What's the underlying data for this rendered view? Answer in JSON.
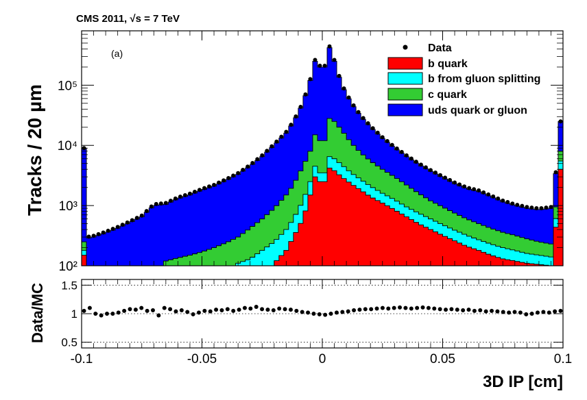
{
  "header": {
    "title": "CMS 2011, √s = 7 TeV"
  },
  "chart_data": {
    "type": "area",
    "subtitle": "(a)",
    "xlabel": "3D IP [cm]",
    "ylabel": "Tracks / 20 µm",
    "xlim": [
      -0.1,
      0.1
    ],
    "ylim": [
      100,
      800000
    ],
    "yscale": "log",
    "x_ticks": [
      "-0.1",
      "-0.05",
      "0",
      "0.05",
      "0.1"
    ],
    "x_tick_values": [
      -0.1,
      -0.05,
      0,
      0.05,
      0.1
    ],
    "y_ticks": [
      "10²",
      "10³",
      "10⁴",
      "10⁵"
    ],
    "y_tick_values": [
      100,
      1000,
      10000,
      100000
    ],
    "legend": {
      "placement": "top-right"
    },
    "series": [
      {
        "name": "Data",
        "kind": "points",
        "color": "#000000"
      },
      {
        "name": "b quark",
        "kind": "stack",
        "color": "#ff0000"
      },
      {
        "name": "b from gluon splitting",
        "kind": "stack",
        "color": "#00ffff"
      },
      {
        "name": "c quark",
        "kind": "stack",
        "color": "#33cc33"
      },
      {
        "name": "uds quark or gluon",
        "kind": "stack",
        "color": "#0000ff"
      }
    ],
    "stack_points": [
      {
        "x": -0.1,
        "b": 150,
        "bg": 180,
        "c": 250,
        "total": 9000
      },
      {
        "x": -0.099,
        "b": 1,
        "bg": 1,
        "c": 1,
        "total": 280
      },
      {
        "x": -0.095,
        "b": 1,
        "bg": 1,
        "c": 1,
        "total": 300
      },
      {
        "x": -0.09,
        "b": 1,
        "bg": 1,
        "c": 1,
        "total": 350
      },
      {
        "x": -0.085,
        "b": 1,
        "bg": 1,
        "c": 1,
        "total": 420
      },
      {
        "x": -0.08,
        "b": 1,
        "bg": 1,
        "c": 1,
        "total": 520
      },
      {
        "x": -0.075,
        "b": 1,
        "bg": 1,
        "c": 1,
        "total": 650
      },
      {
        "x": -0.07,
        "b": 1,
        "bg": 1,
        "c": 1,
        "total": 1000
      },
      {
        "x": -0.065,
        "b": 1,
        "bg": 1,
        "c": 120,
        "total": 1050
      },
      {
        "x": -0.06,
        "b": 1,
        "bg": 1,
        "c": 135,
        "total": 1300
      },
      {
        "x": -0.055,
        "b": 1,
        "bg": 1,
        "c": 150,
        "total": 1500
      },
      {
        "x": -0.05,
        "b": 1,
        "bg": 1,
        "c": 170,
        "total": 1800
      },
      {
        "x": -0.045,
        "b": 1,
        "bg": 1,
        "c": 200,
        "total": 2100
      },
      {
        "x": -0.04,
        "b": 1,
        "bg": 1,
        "c": 240,
        "total": 2600
      },
      {
        "x": -0.035,
        "b": 1,
        "bg": 110,
        "c": 300,
        "total": 3300
      },
      {
        "x": -0.03,
        "b": 1,
        "bg": 130,
        "c": 420,
        "total": 4500
      },
      {
        "x": -0.025,
        "b": 1,
        "bg": 180,
        "c": 600,
        "total": 6500
      },
      {
        "x": -0.02,
        "b": 110,
        "bg": 250,
        "c": 900,
        "total": 10000
      },
      {
        "x": -0.015,
        "b": 180,
        "bg": 400,
        "c": 1500,
        "total": 16000
      },
      {
        "x": -0.012,
        "b": 300,
        "bg": 600,
        "c": 2200,
        "total": 24000
      },
      {
        "x": -0.008,
        "b": 600,
        "bg": 1200,
        "c": 4500,
        "total": 50000
      },
      {
        "x": -0.005,
        "b": 1500,
        "bg": 2500,
        "c": 8000,
        "total": 120000
      },
      {
        "x": -0.003,
        "b": 3000,
        "bg": 4500,
        "c": 15000,
        "total": 250000
      },
      {
        "x": -0.002,
        "b": 3500,
        "bg": 5500,
        "c": 20000,
        "total": 400000
      },
      {
        "x": -0.001,
        "b": 2500,
        "bg": 3500,
        "c": 12000,
        "total": 200000
      },
      {
        "x": 0,
        "b": 1500,
        "bg": 2000,
        "c": 8000,
        "total": 200000
      },
      {
        "x": 0.001,
        "b": 2500,
        "bg": 3500,
        "c": 12000,
        "total": 200000
      },
      {
        "x": 0.002,
        "b": 3500,
        "bg": 5000,
        "c": 20000,
        "total": 350000
      },
      {
        "x": 0.003,
        "b": 4200,
        "bg": 6500,
        "c": 28000,
        "total": 420000
      },
      {
        "x": 0.005,
        "b": 3800,
        "bg": 6000,
        "c": 25000,
        "total": 250000
      },
      {
        "x": 0.008,
        "b": 3000,
        "bg": 4800,
        "c": 18000,
        "total": 100000
      },
      {
        "x": 0.012,
        "b": 2300,
        "bg": 3500,
        "c": 11000,
        "total": 50000
      },
      {
        "x": 0.016,
        "b": 1800,
        "bg": 2700,
        "c": 7500,
        "total": 30000
      },
      {
        "x": 0.02,
        "b": 1400,
        "bg": 2100,
        "c": 5500,
        "total": 20000
      },
      {
        "x": 0.025,
        "b": 1100,
        "bg": 1600,
        "c": 4000,
        "total": 13000
      },
      {
        "x": 0.03,
        "b": 850,
        "bg": 1250,
        "c": 3000,
        "total": 9000
      },
      {
        "x": 0.035,
        "b": 650,
        "bg": 950,
        "c": 2200,
        "total": 6500
      },
      {
        "x": 0.04,
        "b": 500,
        "bg": 750,
        "c": 1600,
        "total": 4800
      },
      {
        "x": 0.045,
        "b": 400,
        "bg": 600,
        "c": 1200,
        "total": 3700
      },
      {
        "x": 0.05,
        "b": 320,
        "bg": 480,
        "c": 950,
        "total": 2900
      },
      {
        "x": 0.055,
        "b": 260,
        "bg": 390,
        "c": 750,
        "total": 2300
      },
      {
        "x": 0.06,
        "b": 210,
        "bg": 320,
        "c": 600,
        "total": 1900
      },
      {
        "x": 0.065,
        "b": 180,
        "bg": 270,
        "c": 500,
        "total": 1700
      },
      {
        "x": 0.07,
        "b": 150,
        "bg": 230,
        "c": 420,
        "total": 1400
      },
      {
        "x": 0.075,
        "b": 130,
        "bg": 200,
        "c": 360,
        "total": 1150
      },
      {
        "x": 0.08,
        "b": 120,
        "bg": 180,
        "c": 320,
        "total": 1000
      },
      {
        "x": 0.085,
        "b": 110,
        "bg": 160,
        "c": 280,
        "total": 900
      },
      {
        "x": 0.09,
        "b": 105,
        "bg": 150,
        "c": 250,
        "total": 850
      },
      {
        "x": 0.095,
        "b": 100,
        "bg": 140,
        "c": 230,
        "total": 900
      },
      {
        "x": 0.1,
        "b": 4000,
        "bg": 5500,
        "c": 8000,
        "total": 25000
      }
    ],
    "ratio": {
      "ylabel": "Data/MC",
      "ylim": [
        0.4,
        1.6
      ],
      "y_ticks": [
        "0.5",
        "1",
        "1.5"
      ],
      "y_tick_values": [
        0.5,
        1,
        1.5
      ],
      "values": [
        1.05,
        1.1,
        1.0,
        0.97,
        1.0,
        1.0,
        1.02,
        1.05,
        1.08,
        1.07,
        1.1,
        1.05,
        1.06,
        0.97,
        1.1,
        1.08,
        1.04,
        1.06,
        1.03,
        0.99,
        1.02,
        1.05,
        1.04,
        1.07,
        1.06,
        1.08,
        1.05,
        1.07,
        1.1,
        1.09,
        1.12,
        1.08,
        1.07,
        1.06,
        1.09,
        1.08,
        1.07,
        1.05,
        1.03,
        1.02,
        1.0,
        0.99,
        0.98,
        1.0,
        1.02,
        1.03,
        1.04,
        1.06,
        1.07,
        1.08,
        1.08,
        1.09,
        1.1,
        1.09,
        1.1,
        1.11,
        1.1,
        1.09,
        1.1,
        1.11,
        1.1,
        1.09,
        1.08,
        1.07,
        1.08,
        1.07,
        1.06,
        1.07,
        1.05,
        1.06,
        1.04,
        1.05,
        1.04,
        1.03,
        1.02,
        1.03,
        1.02,
        0.99,
        1.0,
        1.02,
        1.03,
        1.02,
        1.04,
        1.05
      ]
    }
  }
}
